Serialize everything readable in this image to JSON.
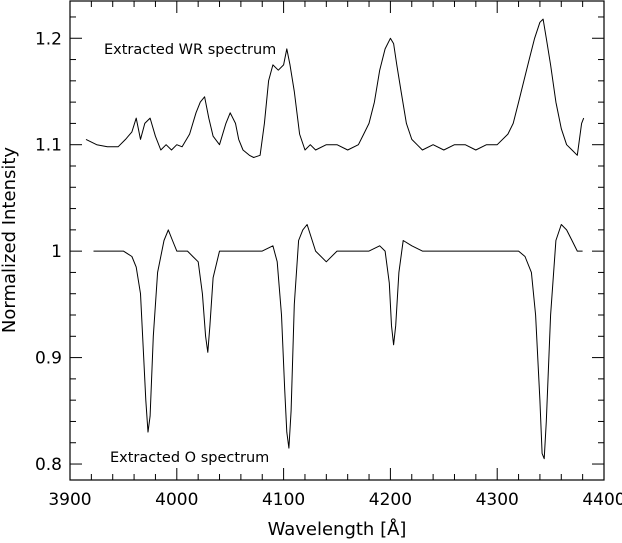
{
  "chart_data": {
    "type": "line",
    "xlabel": "Wavelength [Å]",
    "ylabel": "Normalized Intensity",
    "xlim": [
      3900,
      4400
    ],
    "ylim": [
      0.785,
      1.235
    ],
    "x_ticks": [
      3900,
      4000,
      4100,
      4200,
      4300,
      4400
    ],
    "x_tick_labels": [
      "3900",
      "4000",
      "4100",
      "4200",
      "4300",
      "4400"
    ],
    "y_ticks": [
      0.8,
      0.9,
      1.0,
      1.1,
      1.2
    ],
    "y_tick_labels": [
      "0.8",
      "0.9",
      "1",
      "1.1",
      "1.2"
    ],
    "grid": false,
    "annotations": {
      "wr_label": "Extracted WR spectrum",
      "o_label": "Extracted O spectrum"
    },
    "series": [
      {
        "line_color": "#000000",
        "x": [
          3915,
          3925,
          3935,
          3945,
          3952,
          3958,
          3962,
          3966,
          3970,
          3975,
          3980,
          3985,
          3990,
          3995,
          4000,
          4005,
          4012,
          4018,
          4022,
          4026,
          4030,
          4034,
          4040,
          4046,
          4050,
          4055,
          4058,
          4062,
          4068,
          4072,
          4078,
          4082,
          4086,
          4090,
          4095,
          4100,
          4103,
          4106,
          4110,
          4115,
          4120,
          4125,
          4130,
          4140,
          4150,
          4160,
          4170,
          4175,
          4180,
          4185,
          4190,
          4195,
          4200,
          4203,
          4206,
          4210,
          4215,
          4220,
          4225,
          4230,
          4240,
          4250,
          4260,
          4270,
          4280,
          4290,
          4300,
          4310,
          4315,
          4320,
          4325,
          4330,
          4335,
          4340,
          4343,
          4346,
          4350,
          4355,
          4360,
          4365,
          4370,
          4375,
          4379,
          4381
        ],
        "y": [
          1.105,
          1.1,
          1.098,
          1.098,
          1.105,
          1.112,
          1.125,
          1.105,
          1.12,
          1.125,
          1.108,
          1.095,
          1.1,
          1.095,
          1.1,
          1.098,
          1.11,
          1.13,
          1.14,
          1.145,
          1.125,
          1.108,
          1.1,
          1.12,
          1.13,
          1.12,
          1.105,
          1.095,
          1.09,
          1.088,
          1.09,
          1.12,
          1.16,
          1.175,
          1.17,
          1.175,
          1.19,
          1.175,
          1.15,
          1.11,
          1.095,
          1.1,
          1.095,
          1.1,
          1.1,
          1.095,
          1.1,
          1.11,
          1.12,
          1.14,
          1.17,
          1.19,
          1.2,
          1.195,
          1.175,
          1.15,
          1.12,
          1.105,
          1.1,
          1.095,
          1.1,
          1.095,
          1.1,
          1.1,
          1.095,
          1.1,
          1.1,
          1.11,
          1.12,
          1.14,
          1.16,
          1.18,
          1.2,
          1.215,
          1.218,
          1.2,
          1.175,
          1.14,
          1.115,
          1.1,
          1.095,
          1.09,
          1.12,
          1.125
        ]
      },
      {
        "line_color": "#000000",
        "x": [
          3922,
          3930,
          3940,
          3950,
          3958,
          3962,
          3966,
          3969,
          3971,
          3973,
          3975,
          3978,
          3982,
          3988,
          3992,
          3996,
          4000,
          4005,
          4010,
          4015,
          4020,
          4024,
          4027,
          4029,
          4031,
          4034,
          4040,
          4050,
          4060,
          4070,
          4080,
          4090,
          4094,
          4098,
          4101,
          4103,
          4105,
          4107,
          4110,
          4114,
          4118,
          4122,
          4130,
          4140,
          4150,
          4160,
          4170,
          4180,
          4190,
          4195,
          4199,
          4201,
          4203,
          4205,
          4208,
          4212,
          4220,
          4230,
          4240,
          4250,
          4260,
          4270,
          4280,
          4290,
          4300,
          4310,
          4320,
          4326,
          4332,
          4336,
          4340,
          4342,
          4344,
          4346,
          4350,
          4355,
          4360,
          4365,
          4370,
          4375,
          4380
        ],
        "y": [
          1.0,
          1.0,
          1.0,
          1.0,
          0.995,
          0.985,
          0.96,
          0.9,
          0.86,
          0.83,
          0.845,
          0.92,
          0.98,
          1.01,
          1.02,
          1.01,
          1.0,
          1.0,
          1.0,
          0.995,
          0.99,
          0.96,
          0.92,
          0.905,
          0.93,
          0.975,
          1.0,
          1.0,
          1.0,
          1.0,
          1.0,
          1.005,
          0.99,
          0.94,
          0.87,
          0.83,
          0.815,
          0.85,
          0.95,
          1.01,
          1.02,
          1.025,
          1.0,
          0.99,
          1.0,
          1.0,
          1.0,
          1.0,
          1.005,
          1.0,
          0.97,
          0.93,
          0.912,
          0.93,
          0.98,
          1.01,
          1.005,
          1.0,
          1.0,
          1.0,
          1.0,
          1.0,
          1.0,
          1.0,
          1.0,
          1.0,
          1.0,
          0.995,
          0.98,
          0.94,
          0.86,
          0.81,
          0.805,
          0.84,
          0.94,
          1.01,
          1.025,
          1.02,
          1.01,
          1.0,
          1.0
        ]
      }
    ]
  }
}
